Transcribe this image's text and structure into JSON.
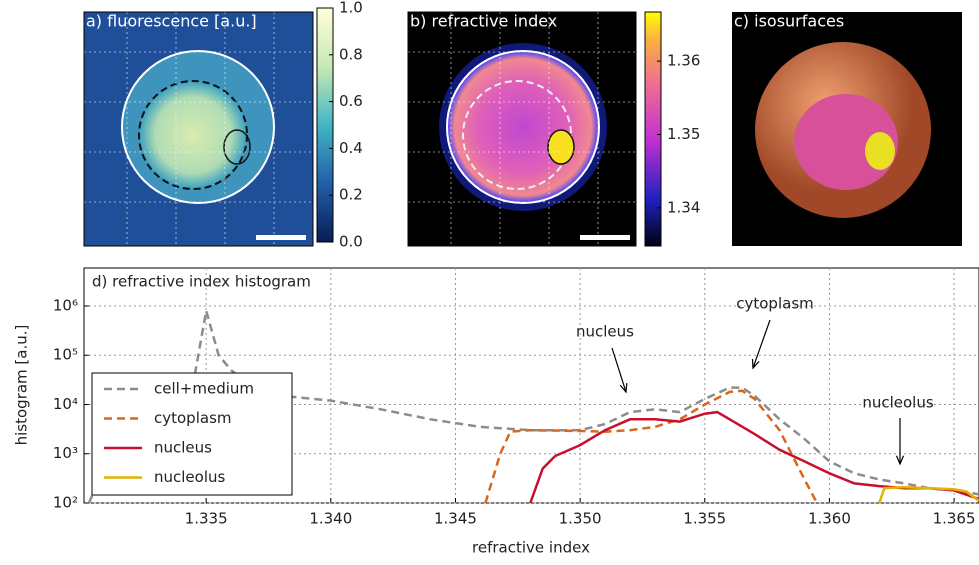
{
  "images": [
    {
      "title": "a) fluorescence [a.u.]",
      "colorbar": {
        "lim": [
          0,
          1
        ],
        "ticks": [
          {
            "value": 0,
            "label": "0.0"
          },
          0.2,
          0.4,
          0.6,
          0.8,
          {
            "value": 1,
            "label": "1.0"
          }
        ]
      }
    },
    {
      "title": "b) refractive index",
      "colorbar": {
        "lim": [
          1.3348,
          1.3667
        ],
        "ticks": [
          1.34,
          1.35,
          1.36
        ]
      }
    },
    {
      "title": "c) isosurfaces"
    }
  ],
  "chart_data": {
    "type": "line",
    "title": "d) refractive index histogram",
    "x_label": "refractive index",
    "y_label": "histogram [a.u.]",
    "log_y": true,
    "grid": true,
    "legend": "lower left",
    "xlim": [
      1.3301,
      1.366
    ],
    "ylim": [
      100,
      5900000
    ],
    "xticks": [
      1.335,
      {
        "value": 1.34,
        "label": "1.340"
      },
      1.345,
      {
        "value": 1.35,
        "label": "1.350"
      },
      1.355,
      {
        "value": 1.36,
        "label": "1.360"
      },
      1.365
    ],
    "yticks": [
      {
        "value": 100,
        "label": "10²"
      },
      {
        "value": 1000,
        "label": "10³"
      },
      {
        "value": 10000,
        "label": "10⁴"
      },
      {
        "value": 100000,
        "label": "10⁵"
      },
      {
        "value": 1000000,
        "label": "10⁶"
      }
    ],
    "series": [
      {
        "name": "cell+medium",
        "color": "#8c8c8c",
        "dash": true,
        "x": [
          1.3303,
          1.331,
          1.332,
          1.3335,
          1.3345,
          1.335,
          1.3355,
          1.336,
          1.337,
          1.338,
          1.34,
          1.342,
          1.344,
          1.346,
          1.348,
          1.35,
          1.351,
          1.352,
          1.353,
          1.354,
          1.355,
          1.356,
          1.3565,
          1.357,
          1.358,
          1.359,
          1.36,
          1.361,
          1.362,
          1.363,
          1.364,
          1.365,
          1.366
        ],
        "values": [
          100,
          700,
          2000,
          2500,
          30000,
          800000,
          100000,
          50000,
          20000,
          15000,
          12000,
          8000,
          5000,
          3500,
          3000,
          3000,
          4000,
          7000,
          8000,
          7000,
          13000,
          22000,
          22000,
          15000,
          5000,
          2000,
          700,
          400,
          300,
          250,
          200,
          180,
          150
        ]
      },
      {
        "name": "cytoplasm",
        "color": "#d9661f",
        "dash": true,
        "x": [
          1.3462,
          1.3468,
          1.3472,
          1.348,
          1.35,
          1.351,
          1.352,
          1.353,
          1.354,
          1.355,
          1.356,
          1.3565,
          1.357,
          1.358,
          1.359,
          1.3595
        ],
        "values": [
          100,
          1000,
          2800,
          3000,
          2900,
          2800,
          3000,
          3500,
          5000,
          10000,
          18000,
          19000,
          13000,
          3000,
          300,
          100
        ]
      },
      {
        "name": "nucleus",
        "color": "#c8102e",
        "dash": false,
        "x": [
          1.348,
          1.3485,
          1.349,
          1.35,
          1.351,
          1.352,
          1.353,
          1.354,
          1.355,
          1.3555,
          1.356,
          1.357,
          1.358,
          1.359,
          1.36,
          1.361,
          1.362,
          1.363,
          1.364,
          1.365,
          1.366
        ],
        "values": [
          100,
          500,
          900,
          1500,
          3000,
          5000,
          5000,
          4500,
          6500,
          7000,
          5000,
          2500,
          1200,
          700,
          400,
          250,
          220,
          200,
          200,
          180,
          120
        ]
      },
      {
        "name": "nucleolus",
        "color": "#e0b400",
        "dash": false,
        "x": [
          1.362,
          1.3622,
          1.363,
          1.364,
          1.365,
          1.3655,
          1.366
        ],
        "values": [
          100,
          200,
          210,
          200,
          190,
          170,
          110
        ]
      }
    ],
    "annotations": [
      "nucleus",
      "cytoplasm",
      "nucleolus"
    ]
  }
}
